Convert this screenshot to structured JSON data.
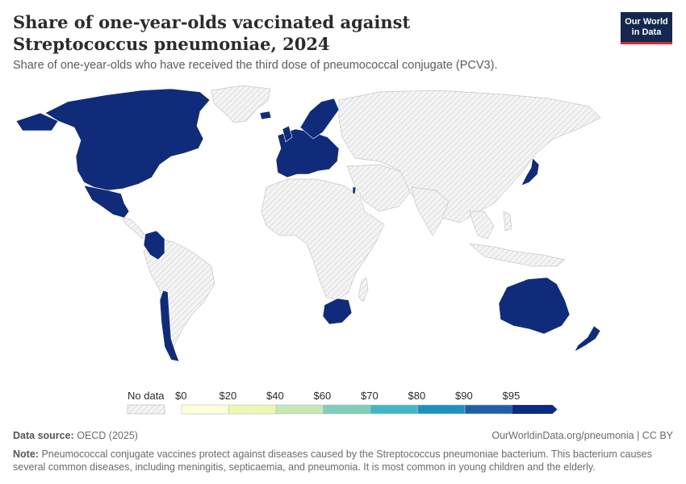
{
  "header": {
    "title": "Share of one-year-olds vaccinated against Streptococcus pneumoniae, 2024",
    "subtitle": "Share of one-year-olds who have received the third dose of pneumococcal conjugate (PCV3)."
  },
  "logo": {
    "line1": "Our World",
    "line2": "in Data"
  },
  "map": {
    "nodata_color": "#e6e6e6",
    "filled_color": "#0f2b7a",
    "filled_regions": [
      "North America",
      "Mexico",
      "Colombia",
      "Chile",
      "Europe",
      "Scandinavia",
      "Israel",
      "South Africa",
      "Japan",
      "Australia",
      "New Zealand"
    ]
  },
  "legend": {
    "nodata_label": "No data",
    "bins": [
      {
        "label": "$0",
        "color": "#ffffd9"
      },
      {
        "label": "$20",
        "color": "#eef7b2"
      },
      {
        "label": "$40",
        "color": "#c6e8b4"
      },
      {
        "label": "$60",
        "color": "#7fcdbb"
      },
      {
        "label": "$70",
        "color": "#41b6c4"
      },
      {
        "label": "$80",
        "color": "#1d91c0"
      },
      {
        "label": "$90",
        "color": "#225ea8"
      },
      {
        "label": "$95",
        "color": "#0c2c84"
      }
    ]
  },
  "footer": {
    "source_label": "Data source:",
    "source": "OECD (2025)",
    "url": "OurWorldinData.org/pneumonia | CC BY",
    "note_label": "Note:",
    "note": "Pneumococcal conjugate vaccines protect against diseases caused by the Streptococcus pneumoniae bacterium. This bacterium causes several common diseases, including meningitis, septicaemia, and pneumonia. It is most common in young children and the elderly."
  }
}
